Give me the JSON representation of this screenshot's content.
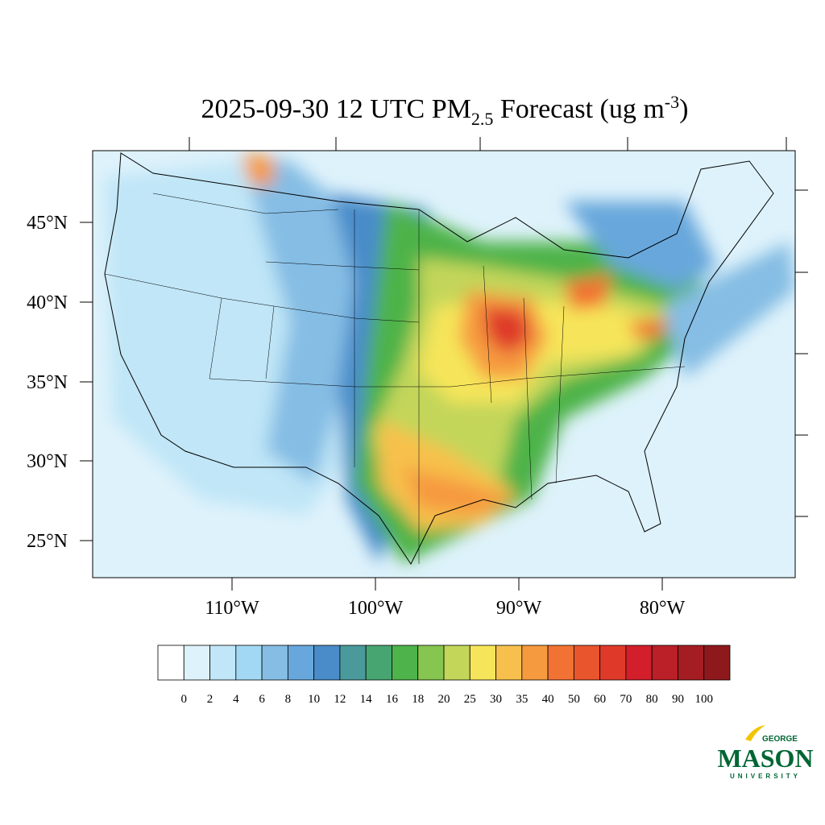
{
  "title": {
    "main": "2025-09-30 12 UTC PM",
    "subscript": "2.5",
    "rest": " Forecast (ug m",
    "superscript": "-3",
    "end": ")"
  },
  "latitude_labels": [
    "45°N",
    "40°N",
    "35°N",
    "30°N",
    "25°N"
  ],
  "longitude_labels": [
    "110°W",
    "100°W",
    "90°W",
    "80°W"
  ],
  "colorbar": {
    "levels": [
      0,
      2,
      4,
      6,
      8,
      10,
      12,
      14,
      16,
      18,
      20,
      25,
      30,
      35,
      40,
      50,
      60,
      70,
      80,
      90,
      100
    ],
    "colors": [
      "#ffffff",
      "#def2fb",
      "#c0e6f7",
      "#a2d8f4",
      "#85bde4",
      "#67a7dc",
      "#4a8cc9",
      "#4a9a9c",
      "#47a572",
      "#4db34a",
      "#86c54f",
      "#c3d65a",
      "#f6e55a",
      "#f7c04c",
      "#f69a3f",
      "#f27233",
      "#e9552c",
      "#df3a29",
      "#d21f2b",
      "#bb1f27",
      "#a41d22",
      "#8e191c"
    ]
  },
  "logo": {
    "top": "GEORGE",
    "middle": "MASON",
    "bottom": "UNIVERSITY"
  }
}
